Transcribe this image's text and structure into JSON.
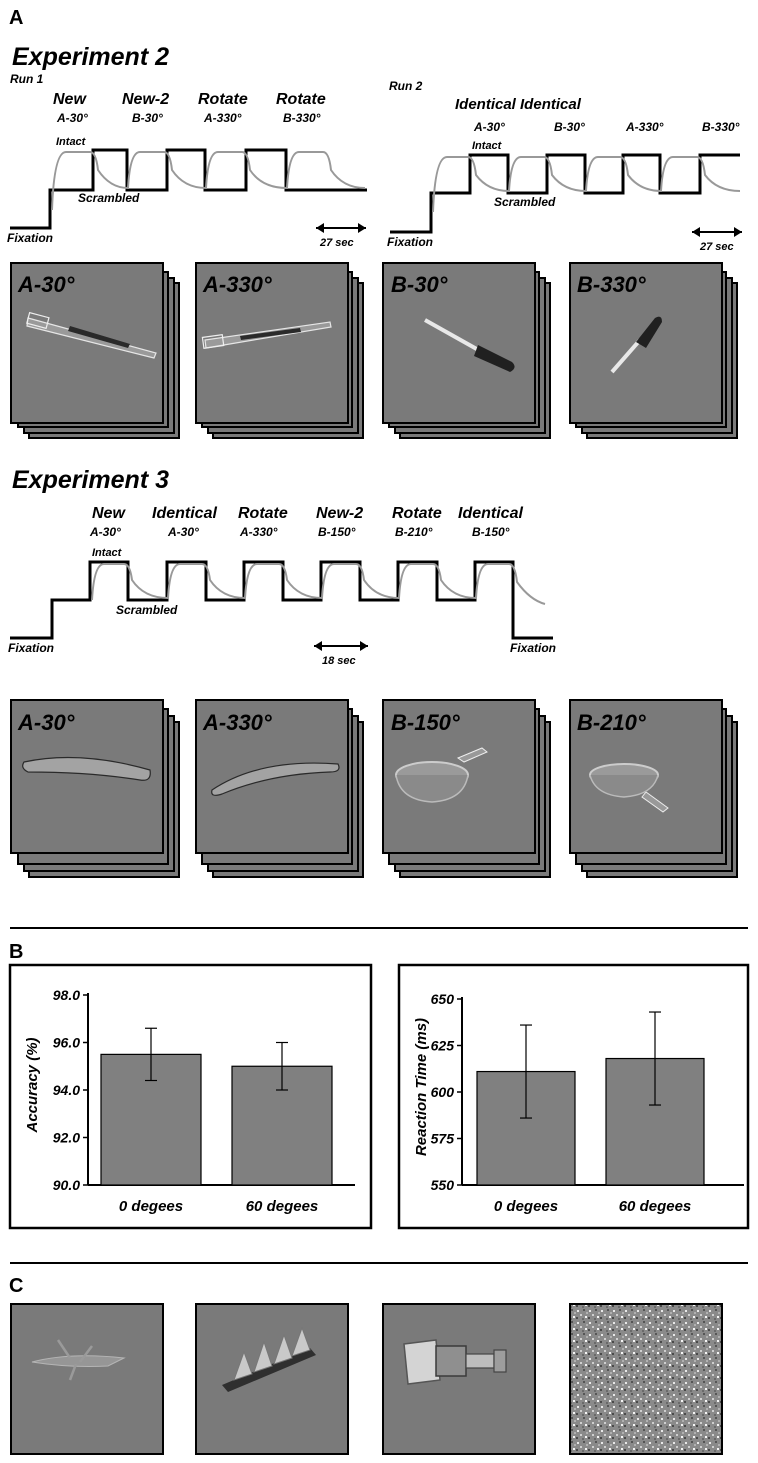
{
  "panel_labels": {
    "a": "A",
    "b": "B",
    "c": "C"
  },
  "experiment2": {
    "title": "Experiment 2",
    "run1": {
      "label": "Run 1",
      "conditions": [
        {
          "name": "New",
          "stim": "A-30°"
        },
        {
          "name": "New-2",
          "stim": "B-30°"
        },
        {
          "name": "Rotate",
          "stim": "A-330°"
        },
        {
          "name": "Rotate",
          "stim": "B-330°"
        }
      ],
      "intact_label": "Intact",
      "scrambled_label": "Scrambled",
      "fixation_label": "Fixation",
      "duration_label": "27 sec"
    },
    "run2": {
      "label": "Run 2",
      "heading": "Identical Identical",
      "stims": [
        "A-30°",
        "B-30°",
        "A-330°",
        "B-330°"
      ],
      "intact_label": "Intact",
      "scrambled_label": "Scrambled",
      "fixation_label": "Fixation",
      "duration_label": "27 sec"
    },
    "stimulus_stacks": [
      {
        "label": "A-30°",
        "object": "toothbrush"
      },
      {
        "label": "A-330°",
        "object": "toothbrush"
      },
      {
        "label": "B-30°",
        "object": "screwdriver"
      },
      {
        "label": "B-330°",
        "object": "screwdriver"
      }
    ]
  },
  "experiment3": {
    "title": "Experiment 3",
    "conditions": [
      {
        "name": "New",
        "stim": "A-30°"
      },
      {
        "name": "Identical",
        "stim": "A-30°"
      },
      {
        "name": "Rotate",
        "stim": "A-330°"
      },
      {
        "name": "New-2",
        "stim": "B-150°"
      },
      {
        "name": "Rotate",
        "stim": "B-210°"
      },
      {
        "name": "Identical",
        "stim": "B-150°"
      }
    ],
    "intact_label": "Intact",
    "scrambled_label": "Scrambled",
    "fixation_label": "Fixation",
    "fixation_end_label": "Fixation",
    "duration_label": "18 sec",
    "stimulus_stacks": [
      {
        "label": "A-30°",
        "object": "banana"
      },
      {
        "label": "A-330°",
        "object": "banana"
      },
      {
        "label": "B-150°",
        "object": "pan"
      },
      {
        "label": "B-210°",
        "object": "pan"
      }
    ]
  },
  "chart_data": [
    {
      "type": "bar",
      "categories": [
        "0 degees",
        "60 degees"
      ],
      "values": [
        95.5,
        95.0
      ],
      "errors": [
        1.1,
        1.0
      ],
      "ylabel": "Accuracy (%)",
      "ylim": [
        90.0,
        98.0
      ],
      "yticks": [
        "90.0",
        "92.0",
        "94.0",
        "96.0",
        "98.0"
      ],
      "grid": false
    },
    {
      "type": "bar",
      "categories": [
        "0 degees",
        "60 degees"
      ],
      "values": [
        611,
        618
      ],
      "errors": [
        25,
        25
      ],
      "ylabel": "Reaction Time (ms)",
      "ylim": [
        550,
        650
      ],
      "yticks": [
        "550",
        "575",
        "600",
        "625",
        "650"
      ],
      "grid": false
    }
  ],
  "panel_c": {
    "thumbnails": [
      "spiky-object",
      "cone-comb-object",
      "cylindrical-object",
      "scrambled-noise"
    ]
  },
  "colors": {
    "panel_gray": "#7a7a7a",
    "bar_gray": "#808080",
    "trace_gray": "#999999"
  }
}
